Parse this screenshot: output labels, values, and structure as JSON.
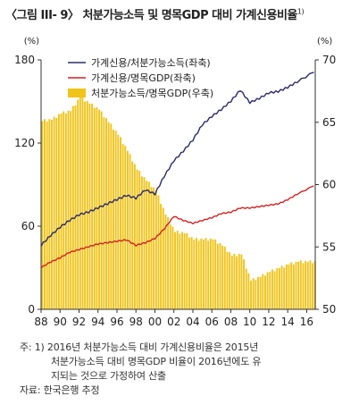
{
  "title": "〈그림 III- 9〉 처분가능소득 및 명목GDP 대비 가계신용비율",
  "title_sup": "1)",
  "notes": {
    "line1": "주: 1) 2016년 처분가능소득 대비 가계신용비율은 2015년",
    "line2": "처분가능소득 대비 명목GDP 비율이 2016년에도 유",
    "line3": "지되는 것으로 가정하여 산출",
    "source": "자료: 한국은행 추정"
  },
  "colors": {
    "line_disposable": "#2b2a6b",
    "line_gdp": "#d62020",
    "bar": "#f0c419"
  },
  "chart_data": {
    "type": "bar+line",
    "left_axis": {
      "unit": "(%)",
      "ylim": [
        0,
        180
      ],
      "ticks": [
        0,
        60,
        120,
        180
      ]
    },
    "right_axis": {
      "unit": "(%)",
      "ylim": [
        50,
        70
      ],
      "ticks": [
        50,
        55,
        60,
        65,
        70
      ]
    },
    "x_ticks": [
      "88",
      "90",
      "92",
      "94",
      "96",
      "98",
      "00",
      "02",
      "04",
      "06",
      "08",
      "10",
      "12",
      "14",
      "16"
    ],
    "x_range_years": [
      1988,
      2016.9
    ],
    "legend": [
      {
        "label": "가계신용/처분가능소득(좌축)",
        "kind": "line",
        "series": "disposable"
      },
      {
        "label": "가계신용/명목GDP(좌축)",
        "kind": "line",
        "series": "gdp"
      },
      {
        "label": "처분가능소득/명목GDP(우축)",
        "kind": "bar",
        "series": "bars"
      }
    ],
    "legend_position": "top-left",
    "series": {
      "disposable": {
        "axis": "left",
        "x": [
          1988,
          1989,
          1990,
          1991,
          1992,
          1993,
          1994,
          1995,
          1996,
          1997,
          1998,
          1999,
          2000,
          2001,
          2002,
          2003,
          2004,
          2005,
          2006,
          2007,
          2008,
          2009,
          2010,
          2011,
          2012,
          2013,
          2014,
          2015,
          2016.75
        ],
        "y": [
          46,
          53,
          59,
          64,
          68,
          70,
          73,
          76,
          79,
          82,
          80,
          86,
          83,
          96,
          107,
          114,
          122,
          133,
          139,
          144,
          150,
          158,
          149,
          152,
          156,
          157,
          160,
          164,
          171
        ]
      },
      "gdp": {
        "axis": "left",
        "x": [
          1988,
          1989,
          1990,
          1991,
          1992,
          1993,
          1994,
          1995,
          1996,
          1997,
          1998,
          1999,
          2000,
          2001,
          2002,
          2003,
          2004,
          2005,
          2006,
          2007,
          2008,
          2009,
          2010,
          2011,
          2012,
          2013,
          2014,
          2015,
          2016.75
        ],
        "y": [
          30,
          34,
          37,
          41,
          43,
          45,
          47,
          48,
          49,
          50,
          46,
          48,
          51,
          58,
          67,
          64,
          62,
          64,
          66,
          69,
          70,
          73,
          73,
          74,
          75,
          76,
          79,
          83,
          89
        ]
      },
      "bars": {
        "axis": "right",
        "x": [
          1988,
          1989,
          1990,
          1991,
          1992,
          1993,
          1994,
          1995,
          1996,
          1997,
          1998,
          1999,
          2000,
          2001,
          2002,
          2003,
          2004,
          2005,
          2006,
          2007,
          2008,
          2009,
          2010,
          2011,
          2012,
          2013,
          2014,
          2015,
          2016
        ],
        "y": [
          65.1,
          65.2,
          65.7,
          65.9,
          67.0,
          66.5,
          66.0,
          65.0,
          64.0,
          62.7,
          61.2,
          60.3,
          59.5,
          57.6,
          56.2,
          56.1,
          55.6,
          55.6,
          55.6,
          55.1,
          54.3,
          54.4,
          52.3,
          52.6,
          53.0,
          53.3,
          53.6,
          53.8,
          53.8
        ]
      }
    }
  }
}
